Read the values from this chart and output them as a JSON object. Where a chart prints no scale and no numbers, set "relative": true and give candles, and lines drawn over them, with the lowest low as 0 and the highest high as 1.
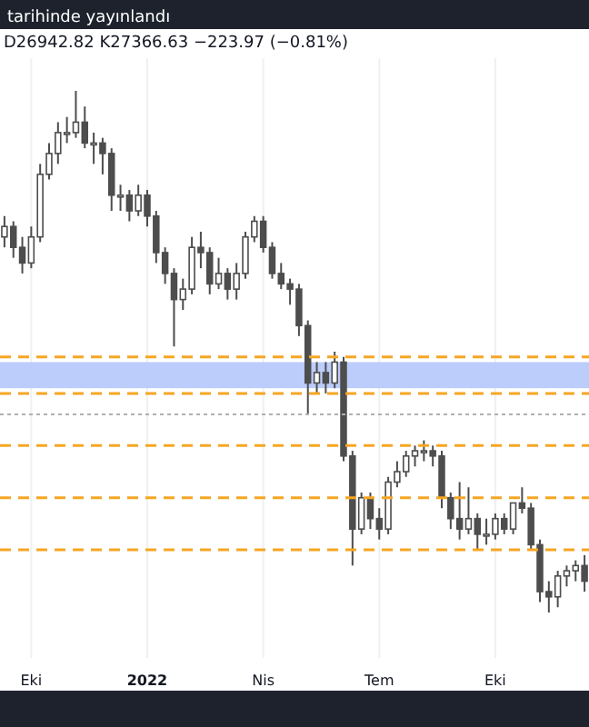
{
  "chart_data": {
    "type": "candlestick",
    "title": "tarihinde yayınlandı",
    "annotations": [
      "D26942.82 K27366.63 −223.97 (−0.81%)"
    ],
    "relative": true,
    "color": "#4d4d4d",
    "grid": "x",
    "categories": [
      null,
      null,
      null,
      "Eki",
      null,
      null,
      null,
      null,
      null,
      null,
      null,
      null,
      null,
      null,
      null,
      null,
      "2022",
      null,
      null,
      null,
      null,
      null,
      null,
      null,
      null,
      null,
      null,
      null,
      null,
      "Nis",
      null,
      null,
      null,
      null,
      null,
      null,
      null,
      null,
      null,
      null,
      null,
      null,
      "Tem",
      null,
      null,
      null,
      null,
      null,
      null,
      null,
      null,
      null,
      null,
      null,
      null,
      "Eki",
      null,
      null,
      null,
      null,
      null,
      null,
      null,
      null,
      null,
      null
    ],
    "ohlc": [
      [
        0.72,
        0.76,
        0.7,
        0.74
      ],
      [
        0.74,
        0.75,
        0.68,
        0.7
      ],
      [
        0.7,
        0.72,
        0.65,
        0.67
      ],
      [
        0.67,
        0.74,
        0.66,
        0.72
      ],
      [
        0.72,
        0.86,
        0.71,
        0.84
      ],
      [
        0.84,
        0.9,
        0.83,
        0.88
      ],
      [
        0.88,
        0.94,
        0.86,
        0.92
      ],
      [
        0.92,
        0.95,
        0.9,
        0.92
      ],
      [
        0.92,
        1.0,
        0.91,
        0.94
      ],
      [
        0.94,
        0.97,
        0.89,
        0.9
      ],
      [
        0.9,
        0.92,
        0.86,
        0.9
      ],
      [
        0.9,
        0.91,
        0.84,
        0.88
      ],
      [
        0.88,
        0.89,
        0.77,
        0.8
      ],
      [
        0.8,
        0.82,
        0.77,
        0.8
      ],
      [
        0.8,
        0.81,
        0.75,
        0.77
      ],
      [
        0.77,
        0.82,
        0.76,
        0.8
      ],
      [
        0.8,
        0.81,
        0.74,
        0.76
      ],
      [
        0.76,
        0.77,
        0.67,
        0.69
      ],
      [
        0.69,
        0.7,
        0.63,
        0.65
      ],
      [
        0.65,
        0.66,
        0.51,
        0.6
      ],
      [
        0.6,
        0.64,
        0.58,
        0.62
      ],
      [
        0.62,
        0.72,
        0.61,
        0.7
      ],
      [
        0.7,
        0.73,
        0.66,
        0.69
      ],
      [
        0.69,
        0.7,
        0.61,
        0.63
      ],
      [
        0.63,
        0.68,
        0.62,
        0.65
      ],
      [
        0.65,
        0.66,
        0.6,
        0.62
      ],
      [
        0.62,
        0.67,
        0.6,
        0.65
      ],
      [
        0.65,
        0.73,
        0.64,
        0.72
      ],
      [
        0.72,
        0.76,
        0.71,
        0.75
      ],
      [
        0.75,
        0.76,
        0.69,
        0.7
      ],
      [
        0.7,
        0.71,
        0.64,
        0.65
      ],
      [
        0.65,
        0.67,
        0.62,
        0.63
      ],
      [
        0.63,
        0.64,
        0.59,
        0.62
      ],
      [
        0.62,
        0.63,
        0.53,
        0.55
      ],
      [
        0.55,
        0.56,
        0.38,
        0.44
      ],
      [
        0.44,
        0.48,
        0.42,
        0.46
      ],
      [
        0.46,
        0.48,
        0.42,
        0.44
      ],
      [
        0.44,
        0.5,
        0.43,
        0.48
      ],
      [
        0.48,
        0.49,
        0.29,
        0.3
      ],
      [
        0.3,
        0.31,
        0.09,
        0.16
      ],
      [
        0.16,
        0.23,
        0.15,
        0.22
      ],
      [
        0.22,
        0.23,
        0.16,
        0.18
      ],
      [
        0.18,
        0.2,
        0.14,
        0.16
      ],
      [
        0.16,
        0.26,
        0.15,
        0.25
      ],
      [
        0.25,
        0.29,
        0.24,
        0.27
      ],
      [
        0.27,
        0.31,
        0.26,
        0.3
      ],
      [
        0.3,
        0.32,
        0.28,
        0.31
      ],
      [
        0.31,
        0.33,
        0.29,
        0.31
      ],
      [
        0.31,
        0.32,
        0.28,
        0.3
      ],
      [
        0.3,
        0.31,
        0.2,
        0.22
      ],
      [
        0.22,
        0.23,
        0.16,
        0.18
      ],
      [
        0.18,
        0.25,
        0.14,
        0.16
      ],
      [
        0.16,
        0.24,
        0.15,
        0.18
      ],
      [
        0.18,
        0.19,
        0.12,
        0.15
      ],
      [
        0.15,
        0.18,
        0.13,
        0.15
      ],
      [
        0.15,
        0.19,
        0.14,
        0.18
      ],
      [
        0.18,
        0.19,
        0.15,
        0.16
      ],
      [
        0.16,
        0.21,
        0.15,
        0.21
      ],
      [
        0.21,
        0.24,
        0.19,
        0.2
      ],
      [
        0.2,
        0.21,
        0.12,
        0.13
      ],
      [
        0.13,
        0.14,
        0.02,
        0.04
      ],
      [
        0.04,
        0.06,
        0.0,
        0.03
      ],
      [
        0.03,
        0.08,
        0.01,
        0.07
      ],
      [
        0.07,
        0.09,
        0.05,
        0.08
      ],
      [
        0.08,
        0.1,
        0.06,
        0.09
      ],
      [
        0.09,
        0.11,
        0.04,
        0.06
      ]
    ],
    "bands": [
      {
        "axis": "y",
        "from": 0.43,
        "to": 0.48,
        "color": "#bccdfb"
      }
    ],
    "ref_lines": [
      {
        "axis": "y",
        "value": 0.49,
        "color": "#f5a623",
        "line_style": "dashed"
      },
      {
        "axis": "y",
        "value": 0.42,
        "color": "#f5a623",
        "line_style": "dashed"
      },
      {
        "axis": "y",
        "value": 0.38,
        "color": "#b0b0b0",
        "line_style": "dotted"
      },
      {
        "axis": "y",
        "value": 0.32,
        "color": "#f5a623",
        "line_style": "dashed"
      },
      {
        "axis": "y",
        "value": 0.22,
        "color": "#f5a623",
        "line_style": "dashed"
      },
      {
        "axis": "y",
        "value": 0.12,
        "color": "#f5a623",
        "line_style": "dashed"
      }
    ]
  }
}
